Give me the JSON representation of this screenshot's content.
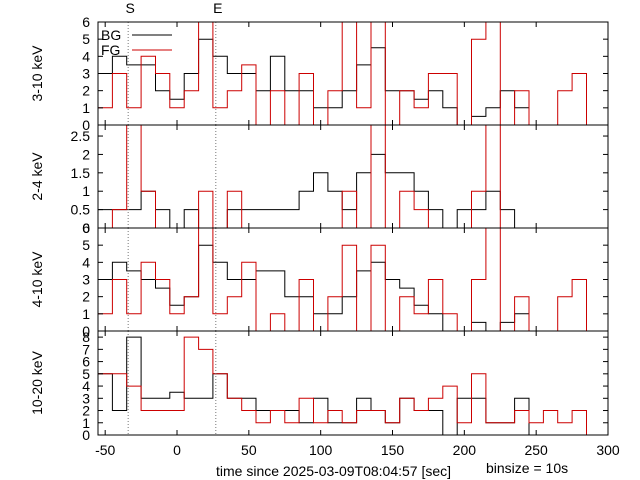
{
  "colors": {
    "bg_line": "#000000",
    "fg_line": "#cc0000",
    "marker_line": "#777777"
  },
  "legend": {
    "bg_label": "BG",
    "fg_label": "FG"
  },
  "markers": [
    {
      "label": "S",
      "t": -34
    },
    {
      "label": "E",
      "t": 27
    }
  ],
  "xlabel": "time since 2025-03-09T08:04:57 [sec]",
  "binsize_label": "binsize = 10s",
  "chart_data": {
    "type": "line",
    "step": true,
    "xlim": [
      -55,
      300
    ],
    "x_ticks": [
      -50,
      0,
      50,
      100,
      150,
      200,
      250,
      300
    ],
    "x_edges": [
      -55,
      -45,
      -35,
      -25,
      -15,
      -5,
      5,
      15,
      25,
      35,
      45,
      55,
      65,
      75,
      85,
      95,
      105,
      115,
      125,
      135,
      145,
      155,
      165,
      175,
      185,
      195,
      205,
      215,
      225,
      235,
      245,
      255,
      265,
      275,
      285,
      295
    ],
    "panels": [
      {
        "ylabel": "3-10 keV",
        "ylim": [
          0,
          6
        ],
        "y_ticks": [
          "0",
          "1",
          "2",
          "3",
          "4",
          "5",
          "6"
        ],
        "y_tick_values": [
          0,
          1,
          2,
          3,
          4,
          5,
          6
        ],
        "series": [
          {
            "name": "BG",
            "values": [
              3,
              4,
              3.5,
              3.5,
              2,
              1.5,
              3,
              5,
              4,
              3,
              3,
              2,
              4,
              2,
              2,
              1,
              1,
              2,
              3.5,
              4.5,
              2,
              2,
              1.5,
              2,
              1,
              0,
              0.5,
              1,
              2,
              1,
              0,
              0,
              0,
              0,
              0
            ]
          },
          {
            "name": "FG",
            "values": [
              1,
              3,
              1,
              4,
              3,
              1,
              2,
              6,
              1,
              2,
              3.5,
              0,
              2,
              0,
              3,
              0,
              2,
              6,
              1,
              6,
              0,
              2,
              1,
              3,
              3,
              0,
              5,
              6,
              0,
              2,
              0,
              0,
              2,
              3,
              0
            ]
          }
        ]
      },
      {
        "ylabel": "2-4 keV",
        "ylim": [
          0,
          2.8
        ],
        "y_ticks": [
          "0",
          "0.5",
          "1",
          "1.5",
          "2",
          "2.5"
        ],
        "y_tick_values": [
          0,
          0.5,
          1,
          1.5,
          2,
          2.5
        ],
        "series": [
          {
            "name": "BG",
            "values": [
              0.5,
              0.5,
              0.5,
              1,
              0.5,
              0,
              0.5,
              0,
              0,
              0.5,
              0.5,
              0.5,
              0.5,
              0.5,
              1,
              1.5,
              1,
              0.5,
              1.5,
              2,
              1.5,
              1.5,
              1,
              0.5,
              0,
              0.5,
              0.5,
              1,
              0.5,
              0,
              0,
              0,
              0,
              0,
              0
            ]
          },
          {
            "name": "FG",
            "values": [
              0,
              0.5,
              3,
              1,
              0,
              0,
              0,
              1,
              0,
              1,
              0,
              0,
              0,
              0,
              0,
              0,
              0,
              1,
              0,
              3,
              0,
              1,
              0.5,
              0,
              0,
              0,
              1,
              3,
              0,
              0,
              0,
              0,
              0,
              0,
              0
            ]
          }
        ]
      },
      {
        "ylabel": "4-10 keV",
        "ylim": [
          0,
          6
        ],
        "y_ticks": [
          "0",
          "1",
          "2",
          "3",
          "4",
          "5",
          "6"
        ],
        "y_tick_values": [
          0,
          1,
          2,
          3,
          4,
          5,
          6
        ],
        "series": [
          {
            "name": "BG",
            "values": [
              3,
              4,
              3.5,
              3,
              2.5,
              1.5,
              2,
              5,
              4,
              3,
              3,
              3.5,
              3.5,
              2,
              2,
              1,
              1,
              2,
              3.5,
              4,
              3,
              2.5,
              1.5,
              1,
              0,
              0,
              0.5,
              0,
              0.5,
              1,
              0,
              0,
              0,
              0,
              0
            ]
          },
          {
            "name": "FG",
            "values": [
              1,
              3,
              1,
              4,
              3,
              1,
              2,
              6,
              1,
              2,
              4,
              0,
              1,
              0,
              3,
              0,
              2,
              5,
              0,
              5,
              0,
              2,
              1,
              3,
              1,
              0,
              3,
              6,
              0,
              2,
              0,
              0,
              2,
              3,
              0
            ]
          }
        ]
      },
      {
        "ylabel": "10-20 keV",
        "ylim": [
          0,
          8.5
        ],
        "y_ticks": [
          "0",
          "1",
          "2",
          "3",
          "4",
          "5",
          "6",
          "7",
          "8"
        ],
        "y_tick_values": [
          0,
          1,
          2,
          3,
          4,
          5,
          6,
          7,
          8
        ],
        "series": [
          {
            "name": "BG",
            "values": [
              5,
              2,
              8,
              3,
              3,
              3.5,
              3,
              3,
              5,
              3,
              3,
              2,
              2,
              2,
              1,
              3,
              1,
              1,
              3,
              2,
              1,
              3,
              2,
              2,
              0,
              3,
              3,
              1,
              1,
              3,
              0,
              0,
              0,
              0,
              0
            ]
          },
          {
            "name": "FG",
            "values": [
              5,
              5,
              4,
              2,
              2,
              2,
              8,
              7,
              5,
              3,
              2,
              1,
              2,
              1,
              3,
              1,
              2,
              1,
              2,
              2,
              1,
              3,
              2,
              3,
              4,
              1,
              5,
              1,
              1,
              2,
              1,
              2,
              1,
              2,
              0
            ]
          }
        ]
      }
    ]
  }
}
